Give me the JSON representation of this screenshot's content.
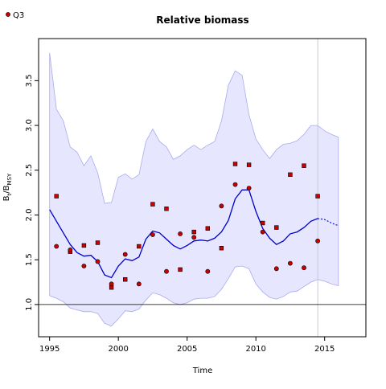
{
  "chart_data": {
    "type": "line",
    "title": "Relative biomass",
    "xlabel": "Time",
    "ylabel_main": "B",
    "ylabel_sub1": "t",
    "ylabel_sep": "/B",
    "ylabel_sub2": "MSY",
    "xlim": [
      1994.2,
      2018.0
    ],
    "ylim": [
      0.64,
      3.97
    ],
    "x_ticks": [
      1995,
      2000,
      2005,
      2010,
      2015
    ],
    "x_tick_labels": [
      "1995",
      "2000",
      "2005",
      "2010",
      "2015"
    ],
    "y_ticks": [
      1.0,
      1.5,
      2.0,
      2.5,
      3.0,
      3.5
    ],
    "y_tick_labels": [
      "1.0",
      "1.5",
      "2.0",
      "2.5",
      "3.0",
      "3.5"
    ],
    "reference_line_y": 1.0,
    "last_observation_x": 2014.5,
    "legend": {
      "position": "top-left",
      "entries": [
        {
          "label": "Q3",
          "color": "#cc0000",
          "marker": "circle"
        }
      ]
    },
    "colors": {
      "estimate": "#0000cc",
      "band_fill": "#e6e6ff",
      "band_edge": "#aaaaee",
      "points": "#cc0000",
      "vline": "#c8c8d8"
    },
    "series": [
      {
        "role": "estimate",
        "x": [
          1995.0,
          1995.5,
          1996.0,
          1996.5,
          1997.0,
          1997.5,
          1998.0,
          1998.5,
          1999.0,
          1999.5,
          2000.0,
          2000.5,
          2001.0,
          2001.5,
          2002.0,
          2002.5,
          2003.0,
          2003.5,
          2004.0,
          2004.5,
          2005.0,
          2005.5,
          2006.0,
          2006.5,
          2007.0,
          2007.5,
          2008.0,
          2008.5,
          2009.0,
          2009.5,
          2010.0,
          2010.5,
          2011.0,
          2011.5,
          2012.0,
          2012.5,
          2013.0,
          2013.5,
          2014.0,
          2014.5
        ],
        "y": [
          2.06,
          1.93,
          1.8,
          1.67,
          1.58,
          1.54,
          1.55,
          1.48,
          1.33,
          1.3,
          1.43,
          1.51,
          1.49,
          1.53,
          1.73,
          1.82,
          1.8,
          1.73,
          1.66,
          1.62,
          1.66,
          1.71,
          1.72,
          1.71,
          1.74,
          1.81,
          1.94,
          2.18,
          2.28,
          2.28,
          2.04,
          1.85,
          1.74,
          1.67,
          1.71,
          1.79,
          1.81,
          1.86,
          1.93,
          1.96
        ]
      },
      {
        "role": "forecast",
        "x": [
          2014.5,
          2015.0,
          2015.5,
          2016.0
        ],
        "y": [
          1.96,
          1.95,
          1.91,
          1.88
        ]
      },
      {
        "role": "band_upper",
        "x": [
          1995.0,
          1995.5,
          1996.0,
          1996.5,
          1997.0,
          1997.5,
          1998.0,
          1998.5,
          1999.0,
          1999.5,
          2000.0,
          2000.5,
          2001.0,
          2001.5,
          2002.0,
          2002.5,
          2003.0,
          2003.5,
          2004.0,
          2004.5,
          2005.0,
          2005.5,
          2006.0,
          2006.5,
          2007.0,
          2007.5,
          2008.0,
          2008.5,
          2009.0,
          2009.5,
          2010.0,
          2010.5,
          2011.0,
          2011.5,
          2012.0,
          2012.5,
          2013.0,
          2013.5,
          2014.0,
          2014.5,
          2015.0,
          2015.5,
          2016.0
        ],
        "y": [
          3.81,
          3.18,
          3.05,
          2.76,
          2.7,
          2.55,
          2.66,
          2.47,
          2.13,
          2.14,
          2.42,
          2.46,
          2.4,
          2.45,
          2.82,
          2.96,
          2.82,
          2.76,
          2.62,
          2.66,
          2.73,
          2.78,
          2.73,
          2.78,
          2.82,
          3.05,
          3.45,
          3.61,
          3.56,
          3.12,
          2.85,
          2.73,
          2.63,
          2.73,
          2.79,
          2.8,
          2.83,
          2.9,
          3.0,
          3.0,
          2.94,
          2.9,
          2.87
        ]
      },
      {
        "role": "band_lower",
        "x": [
          1995.0,
          1995.5,
          1996.0,
          1996.5,
          1997.0,
          1997.5,
          1998.0,
          1998.5,
          1999.0,
          1999.5,
          2000.0,
          2000.5,
          2001.0,
          2001.5,
          2002.0,
          2002.5,
          2003.0,
          2003.5,
          2004.0,
          2004.5,
          2005.0,
          2005.5,
          2006.0,
          2006.5,
          2007.0,
          2007.5,
          2008.0,
          2008.5,
          2009.0,
          2009.5,
          2010.0,
          2010.5,
          2011.0,
          2011.5,
          2012.0,
          2012.5,
          2013.0,
          2013.5,
          2014.0,
          2014.5,
          2015.0,
          2015.5,
          2016.0
        ],
        "y": [
          1.1,
          1.07,
          1.03,
          0.96,
          0.94,
          0.92,
          0.92,
          0.9,
          0.79,
          0.76,
          0.84,
          0.93,
          0.92,
          0.95,
          1.05,
          1.13,
          1.11,
          1.07,
          1.02,
          1.0,
          1.02,
          1.06,
          1.07,
          1.07,
          1.09,
          1.17,
          1.29,
          1.42,
          1.43,
          1.4,
          1.23,
          1.14,
          1.08,
          1.06,
          1.09,
          1.14,
          1.15,
          1.2,
          1.25,
          1.28,
          1.26,
          1.23,
          1.21
        ]
      },
      {
        "role": "points",
        "name": "Q3",
        "x": [
          1995.5,
          1995.5,
          1996.5,
          1996.5,
          1997.5,
          1997.5,
          1998.5,
          1998.5,
          1999.5,
          1999.5,
          2000.5,
          2000.5,
          2001.5,
          2001.5,
          2002.5,
          2002.5,
          2003.5,
          2003.5,
          2004.5,
          2004.5,
          2005.5,
          2005.5,
          2006.5,
          2006.5,
          2007.5,
          2007.5,
          2008.5,
          2008.5,
          2009.5,
          2009.5,
          2010.5,
          2010.5,
          2011.5,
          2011.5,
          2012.5,
          2012.5,
          2013.5,
          2013.5,
          2014.5,
          2014.5
        ],
        "y": [
          2.21,
          1.65,
          1.59,
          1.61,
          1.66,
          1.43,
          1.69,
          1.48,
          1.19,
          1.23,
          1.28,
          1.56,
          1.65,
          1.23,
          2.12,
          1.78,
          2.07,
          1.37,
          1.39,
          1.79,
          1.81,
          1.75,
          1.85,
          1.37,
          1.63,
          2.1,
          2.57,
          2.34,
          2.56,
          2.3,
          1.91,
          1.81,
          1.86,
          1.4,
          2.45,
          1.46,
          2.55,
          1.41,
          2.21,
          1.71
        ]
      }
    ]
  }
}
